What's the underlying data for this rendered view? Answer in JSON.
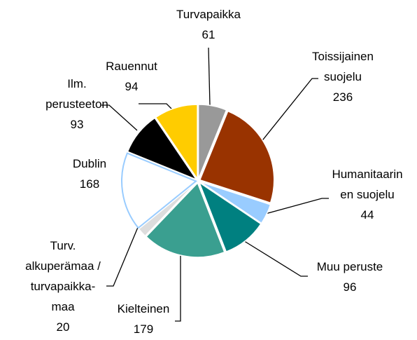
{
  "chart_data": {
    "type": "pie",
    "categories": [
      "Turvapaikka",
      "Toissijainen\nsuojelu",
      "Humanitaarin\nen suojelu",
      "Muu peruste",
      "Kielteinen",
      "Turv.\nalkuperämaa /\nturvapaikka-\nmaa",
      "Dublin",
      "Ilm.\nperusteeton",
      "Rauennut"
    ],
    "values": [
      61,
      236,
      44,
      96,
      179,
      20,
      168,
      93,
      94
    ],
    "colors": [
      "#999999",
      "#993300",
      "#99ccff",
      "#008080",
      "#3a9f90",
      "#dddddd",
      "#ffffff",
      "#000000",
      "#ffcc00"
    ]
  }
}
